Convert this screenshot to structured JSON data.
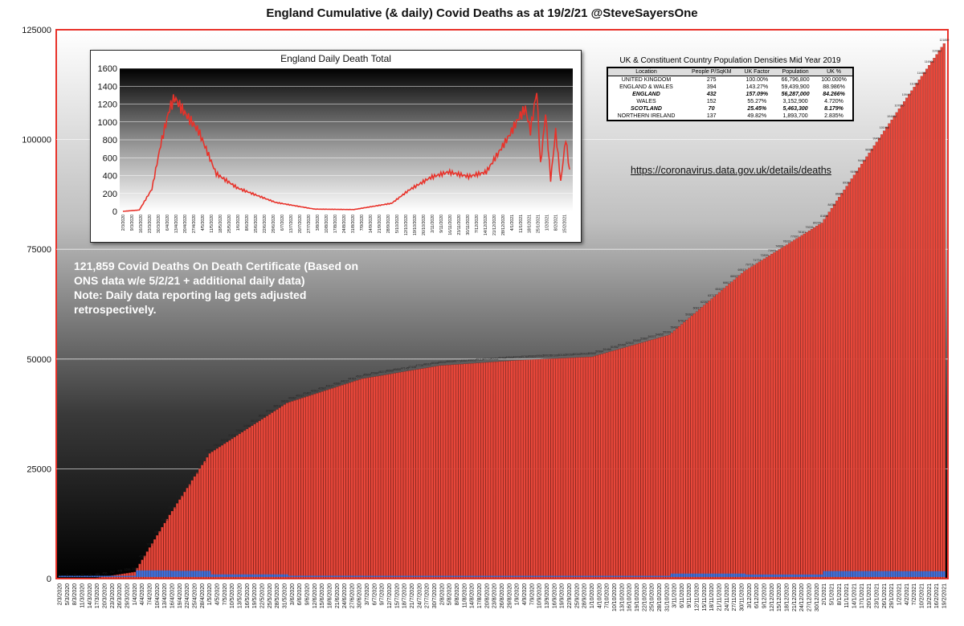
{
  "title": "England Cumulative (& daily) Covid Deaths as at 19/2/21 @SteveSayersOne",
  "colors": {
    "bar": "#e8473a",
    "bar_edge": "#7a1a14",
    "frame": "#e8322a",
    "line": "#e8322a",
    "daily_bar": "#3a6fd8"
  },
  "chart_data": [
    {
      "type": "bar",
      "title": "England Cumulative (& daily) Covid Deaths as at 19/2/21 @SteveSayersOne",
      "ylim": [
        0,
        125000
      ],
      "yticks": [
        0,
        25000,
        50000,
        75000,
        100000,
        125000
      ],
      "anchor_dates": [
        "2/3/2020",
        "15/3/2020",
        "1/4/2020",
        "15/4/2020",
        "1/5/2020",
        "1/6/2020",
        "1/7/2020",
        "1/8/2020",
        "1/9/2020",
        "1/10/2020",
        "1/11/2020",
        "1/12/2020",
        "1/1/2021",
        "1/2/2021",
        "19/2/2021"
      ],
      "anchor_values": [
        1,
        21,
        1500,
        14500,
        28500,
        40000,
        45500,
        48500,
        49700,
        50500,
        55500,
        70000,
        81000,
        107000,
        121859
      ],
      "xticks": [
        "2/3/2020",
        "5/3/2020",
        "8/3/2020",
        "11/3/2020",
        "14/3/2020",
        "17/3/2020",
        "20/3/2020",
        "23/3/2020",
        "26/3/2020",
        "29/3/2020",
        "1/4/2020",
        "4/4/2020",
        "7/4/2020",
        "10/4/2020",
        "13/4/2020",
        "16/4/2020",
        "19/4/2020",
        "22/4/2020",
        "25/4/2020",
        "28/4/2020",
        "1/5/2020",
        "4/5/2020",
        "7/5/2020",
        "10/5/2020",
        "13/5/2020",
        "16/5/2020",
        "19/5/2020",
        "22/5/2020",
        "25/5/2020",
        "28/5/2020",
        "31/5/2020",
        "3/6/2020",
        "6/6/2020",
        "9/6/2020",
        "12/6/2020",
        "15/6/2020",
        "18/6/2020",
        "21/6/2020",
        "24/6/2020",
        "27/6/2020",
        "30/6/2020",
        "3/7/2020",
        "6/7/2020",
        "9/7/2020",
        "12/7/2020",
        "15/7/2020",
        "18/7/2020",
        "21/7/2020",
        "24/7/2020",
        "27/7/2020",
        "30/7/2020",
        "2/8/2020",
        "5/8/2020",
        "8/8/2020",
        "11/8/2020",
        "14/8/2020",
        "17/8/2020",
        "20/8/2020",
        "23/8/2020",
        "26/8/2020",
        "29/8/2020",
        "1/9/2020",
        "4/9/2020",
        "7/9/2020",
        "10/9/2020",
        "13/9/2020",
        "16/9/2020",
        "19/9/2020",
        "22/9/2020",
        "25/9/2020",
        "28/9/2020",
        "1/10/2020",
        "4/10/2020",
        "7/10/2020",
        "10/10/2020",
        "13/10/2020",
        "16/10/2020",
        "19/10/2020",
        "22/10/2020",
        "25/10/2020",
        "28/10/2020",
        "31/10/2020",
        "3/11/2020",
        "6/11/2020",
        "9/11/2020",
        "12/11/2020",
        "15/11/2020",
        "18/11/2020",
        "21/11/2020",
        "24/11/2020",
        "27/11/2020",
        "30/11/2020",
        "3/12/2020",
        "6/12/2020",
        "9/12/2020",
        "12/12/2020",
        "15/12/2020",
        "18/12/2020",
        "21/12/2020",
        "24/12/2020",
        "27/12/2020",
        "30/12/2020",
        "2/1/2021",
        "5/1/2021",
        "8/1/2021",
        "11/1/2021",
        "14/1/2021",
        "17/1/2021",
        "20/1/2021",
        "23/1/2021",
        "26/1/2021",
        "29/1/2021",
        "1/2/2021",
        "4/2/2021",
        "7/2/2021",
        "10/2/2021",
        "13/2/2021",
        "16/2/2021",
        "19/2/2021"
      ],
      "final_value": 121859,
      "annotation": [
        "121,859 Covid Deaths On Death Certificate (Based on",
        "ONS data w/e 5/2/21 + additional daily data)",
        "Note: Daily data reporting lag gets adjusted",
        "retrospectively."
      ],
      "source": "https://coronavirus.data.gov.uk/details/deaths"
    },
    {
      "type": "line",
      "title": "England Daily Death Total",
      "ylim": [
        0,
        1600
      ],
      "yticks": [
        0,
        200,
        400,
        600,
        800,
        1000,
        1200,
        1400,
        1600
      ],
      "anchor_dates": [
        "2/3/2020",
        "15/3/2020",
        "25/3/2020",
        "1/4/2020",
        "8/4/2020",
        "12/4/2020",
        "20/4/2020",
        "1/5/2020",
        "15/5/2020",
        "1/6/2020",
        "1/7/2020",
        "1/8/2020",
        "1/9/2020",
        "1/10/2020",
        "15/10/2020",
        "1/11/2020",
        "15/11/2020",
        "1/12/2020",
        "15/12/2020",
        "1/1/2021",
        "10/1/2021",
        "15/1/2021",
        "19/1/2021",
        "24/1/2021",
        "27/1/2021",
        "31/1/2021",
        "4/2/2021",
        "8/2/2021",
        "12/2/2021",
        "16/2/2021",
        "19/2/2021"
      ],
      "anchor_values": [
        0,
        15,
        250,
        750,
        1150,
        1270,
        1100,
        900,
        420,
        260,
        100,
        25,
        20,
        90,
        240,
        380,
        440,
        390,
        440,
        820,
        1050,
        1150,
        900,
        1350,
        520,
        1100,
        350,
        900,
        330,
        820,
        450
      ],
      "xticks": [
        "2/3/2020",
        "9/3/2020",
        "16/3/2020",
        "23/3/2020",
        "30/3/2020",
        "6/4/2020",
        "13/4/2020",
        "20/4/2020",
        "27/4/2020",
        "4/5/2020",
        "11/5/2020",
        "18/5/2020",
        "25/5/2020",
        "1/6/2020",
        "8/6/2020",
        "15/6/2020",
        "22/6/2020",
        "29/6/2020",
        "6/7/2020",
        "13/7/2020",
        "20/7/2020",
        "27/7/2020",
        "3/8/2020",
        "10/8/2020",
        "17/8/2020",
        "24/8/2020",
        "31/8/2020",
        "7/9/2020",
        "14/9/2020",
        "21/9/2020",
        "28/9/2020",
        "5/10/2020",
        "12/10/2020",
        "19/10/2020",
        "26/10/2020",
        "2/11/2020",
        "9/11/2020",
        "16/11/2020",
        "23/11/2020",
        "30/11/2020",
        "7/12/2020",
        "14/12/2020",
        "21/12/2020",
        "28/12/2020",
        "4/1/2021",
        "11/1/2021",
        "18/1/2021",
        "25/1/2021",
        "1/2/2021",
        "8/2/2021",
        "15/2/2021"
      ]
    }
  ],
  "population_table": {
    "title": "UK & Constituent Country Population Densities Mid Year 2019",
    "headers": [
      "Location",
      "People P/SqKM",
      "UK Factor",
      "Population",
      "UK %"
    ],
    "rows": [
      [
        "UNITED KINGDOM",
        "275",
        "100.00%",
        "66,796,800",
        "100.000%"
      ],
      [
        "ENGLAND & WALES",
        "394",
        "143.27%",
        "59,439,900",
        "88.986%"
      ],
      [
        "ENGLAND",
        "432",
        "157.09%",
        "56,287,000",
        "84.266%"
      ],
      [
        "WALES",
        "152",
        "55.27%",
        "3,152,900",
        "4.720%"
      ],
      [
        "SCOTLAND",
        "70",
        "25.45%",
        "5,463,300",
        "8.179%"
      ],
      [
        "NORTHERN IRELAND",
        "137",
        "49.82%",
        "1,893,700",
        "2.835%"
      ]
    ]
  },
  "link_text": "https://coronavirus.data.gov.uk/details/deaths"
}
